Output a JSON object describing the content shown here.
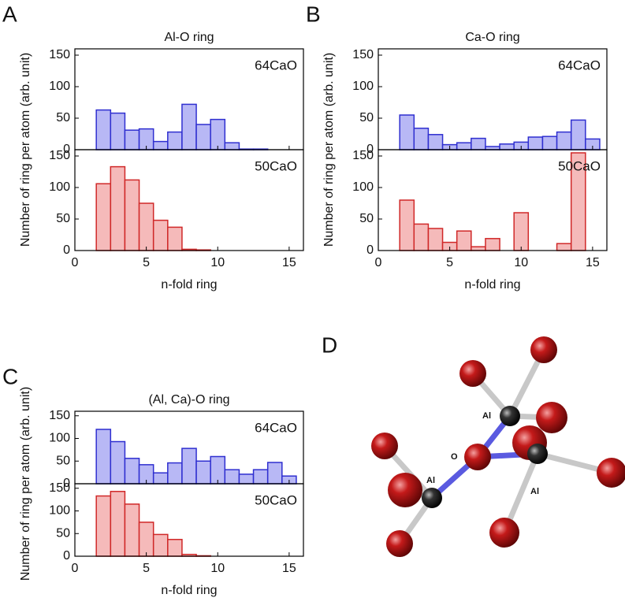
{
  "chart_data": [
    {
      "type": "histogram",
      "panel": "A",
      "title": "Al-O ring",
      "xlabel": "n-fold ring",
      "ylabel": "Number of ring per atom (arb. unit)",
      "bins": [
        1.5,
        2.5,
        3.5,
        4.5,
        5.5,
        6.5,
        7.5,
        8.5,
        9.5,
        10.5,
        11.5,
        12.5,
        13.5,
        14.5,
        15.5
      ],
      "xlim": [
        0,
        16
      ],
      "xticks": [
        0,
        5,
        10,
        15
      ],
      "ylim": [
        0,
        160
      ],
      "yticks": [
        0,
        50,
        100,
        150
      ],
      "series": [
        {
          "name": "64CaO",
          "color": "#2f2fd0",
          "fill": "#b8b8f5",
          "values": [
            63,
            58,
            31,
            33,
            13,
            28,
            72,
            40,
            48,
            11,
            1,
            1,
            0,
            0
          ]
        },
        {
          "name": "50CaO",
          "color": "#d02828",
          "fill": "#f5baba",
          "values": [
            106,
            133,
            112,
            75,
            48,
            37,
            2,
            1,
            0,
            0,
            0,
            0,
            0,
            0
          ]
        }
      ]
    },
    {
      "type": "histogram",
      "panel": "B",
      "title": "Ca-O ring",
      "xlabel": "n-fold ring",
      "ylabel": "Number of ring per atom (arb. unit)",
      "bins": [
        1.5,
        2.5,
        3.5,
        4.5,
        5.5,
        6.5,
        7.5,
        8.5,
        9.5,
        10.5,
        11.5,
        12.5,
        13.5,
        14.5,
        15.5
      ],
      "xlim": [
        0,
        16
      ],
      "xticks": [
        0,
        5,
        10,
        15
      ],
      "ylim": [
        0,
        160
      ],
      "yticks": [
        0,
        50,
        100,
        150
      ],
      "series": [
        {
          "name": "64CaO",
          "color": "#2f2fd0",
          "fill": "#b8b8f5",
          "values": [
            55,
            34,
            24,
            8,
            11,
            18,
            5,
            9,
            12,
            20,
            21,
            28,
            47,
            17
          ]
        },
        {
          "name": "50CaO",
          "color": "#d02828",
          "fill": "#f5baba",
          "values": [
            80,
            42,
            35,
            13,
            31,
            6,
            19,
            0,
            60,
            0,
            0,
            11,
            155,
            0
          ]
        }
      ]
    },
    {
      "type": "histogram",
      "panel": "C",
      "title": "(Al, Ca)-O ring",
      "xlabel": "n-fold ring",
      "ylabel": "Number of ring per atom (arb. unit)",
      "bins": [
        1.5,
        2.5,
        3.5,
        4.5,
        5.5,
        6.5,
        7.5,
        8.5,
        9.5,
        10.5,
        11.5,
        12.5,
        13.5,
        14.5,
        15.5
      ],
      "xlim": [
        0,
        16
      ],
      "xticks": [
        0,
        5,
        10,
        15
      ],
      "ylim": [
        0,
        160
      ],
      "yticks": [
        0,
        50,
        100,
        150
      ],
      "series": [
        {
          "name": "64CaO",
          "color": "#2f2fd0",
          "fill": "#b8b8f5",
          "values": [
            120,
            93,
            56,
            42,
            24,
            46,
            78,
            50,
            60,
            31,
            21,
            31,
            47,
            17
          ]
        },
        {
          "name": "50CaO",
          "color": "#d02828",
          "fill": "#f5baba",
          "values": [
            133,
            143,
            115,
            75,
            48,
            37,
            4,
            1,
            0,
            0,
            0,
            0,
            0,
            0
          ]
        }
      ]
    }
  ],
  "diagram": {
    "panel": "D",
    "atom_labels": [
      "Al",
      "Al",
      "O",
      "Al"
    ]
  }
}
